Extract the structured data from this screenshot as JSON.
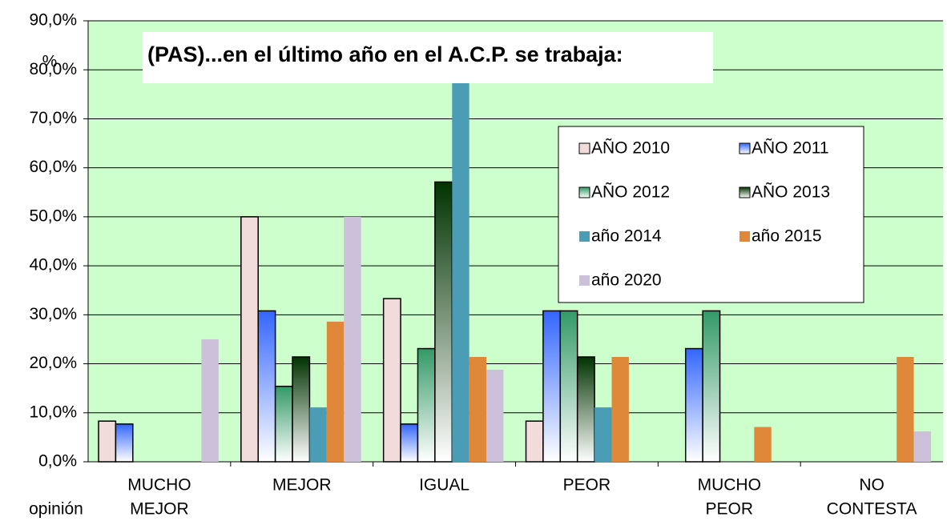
{
  "chart_data": {
    "type": "bar",
    "title": "(PAS)...en el último año en el A.C.P. se trabaja:",
    "y_label": "%",
    "x_label": "opinión",
    "categories": [
      [
        "MUCHO",
        "MEJOR"
      ],
      [
        "MEJOR"
      ],
      [
        "IGUAL"
      ],
      [
        "PEOR"
      ],
      [
        "MUCHO",
        "PEOR"
      ],
      [
        "NO",
        "CONTESTA"
      ]
    ],
    "series": [
      {
        "name": "AÑO 2010",
        "color": "#f2dcdb",
        "gradient": false,
        "outline": true,
        "values": [
          8.3,
          50,
          33.3,
          8.3,
          0,
          0
        ]
      },
      {
        "name": "AÑO 2011",
        "color": "#3366ff",
        "gradient": true,
        "outline": true,
        "values": [
          7.7,
          30.8,
          7.7,
          30.8,
          23.1,
          0
        ]
      },
      {
        "name": "AÑO 2012",
        "color": "#339966",
        "gradient": true,
        "outline": true,
        "values": [
          0,
          15.4,
          23.1,
          30.8,
          30.8,
          0
        ]
      },
      {
        "name": "AÑO 2013",
        "color": "#003300",
        "gradient": true,
        "outline": true,
        "values": [
          0,
          21.4,
          57.1,
          21.4,
          0,
          0
        ]
      },
      {
        "name": "año 2014",
        "color": "#4b9cb5",
        "gradient": false,
        "outline": false,
        "values": [
          0,
          11.1,
          77.8,
          11.1,
          0,
          0
        ]
      },
      {
        "name": "año 2015",
        "color": "#e0883a",
        "gradient": false,
        "outline": false,
        "values": [
          0,
          28.6,
          21.4,
          21.4,
          7.1,
          21.4
        ]
      },
      {
        "name": "año 2020",
        "color": "#ccc0da",
        "gradient": false,
        "outline": false,
        "values": [
          25,
          50,
          18.8,
          0,
          0,
          6.2
        ]
      }
    ],
    "ylim": [
      0,
      90
    ],
    "yticks": [
      {
        "value": 0,
        "label": "0,0%"
      },
      {
        "value": 10,
        "label": "10,0%"
      },
      {
        "value": 20,
        "label": "20,0%"
      },
      {
        "value": 30,
        "label": "30,0%"
      },
      {
        "value": 40,
        "label": "40,0%"
      },
      {
        "value": 50,
        "label": "50,0%"
      },
      {
        "value": 60,
        "label": "60,0%"
      },
      {
        "value": 70,
        "label": "70,0%"
      },
      {
        "value": 80,
        "label": "80,0%"
      },
      {
        "value": 90,
        "label": "90,0%"
      }
    ],
    "grid": true,
    "legend": "upper right",
    "plot_background": "#ccffcc"
  }
}
